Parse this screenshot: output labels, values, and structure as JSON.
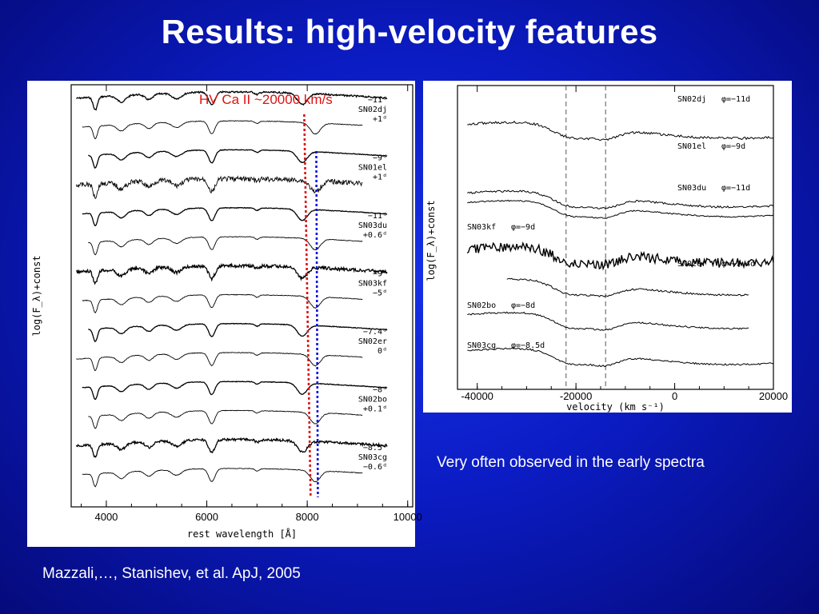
{
  "slide": {
    "title": "Results: high-velocity features",
    "note": "Very often observed in the early spectra",
    "citation": "Mazzali,…, Stanishev, et al. ApJ, 2005"
  },
  "colors": {
    "background": "#0b1cc4",
    "hv_line": "#e01010",
    "rest_line": "#1010e0"
  },
  "chart_data": [
    {
      "type": "line",
      "panel": "left",
      "xlabel": "rest wavelength [Å]",
      "ylabel": "log(F_λ)+const",
      "x_ticks": [
        4000,
        6000,
        8000,
        10000
      ],
      "xlim": [
        3300,
        10100
      ],
      "annotation": "HV  Ca II ~20000 km/s",
      "hv_line_wavelength": 7940,
      "rest_line_wavelength": 8180,
      "spectra": [
        {
          "name": "SN02dj",
          "epochs": [
            "−11ᵈ",
            "+1ᵈ"
          ]
        },
        {
          "name": "SN01el",
          "epochs": [
            "−9ᵈ",
            "+1ᵈ"
          ]
        },
        {
          "name": "SN03du",
          "epochs": [
            "−11ᵈ",
            "+0.6ᵈ"
          ]
        },
        {
          "name": "SN03kf",
          "epochs": [
            "−9ᵈ",
            "−5ᵈ"
          ]
        },
        {
          "name": "SN02er",
          "epochs": [
            "−7.4ᵈ",
            "0ᵈ"
          ]
        },
        {
          "name": "SN02bo",
          "epochs": [
            "−8ᵈ",
            "+0.1ᵈ"
          ]
        },
        {
          "name": "SN03cg",
          "epochs": [
            "−8.5ᵈ",
            "−0.6ᵈ"
          ]
        }
      ]
    },
    {
      "type": "line",
      "panel": "right",
      "xlabel": "velocity (km s⁻¹)",
      "ylabel": "log(F_λ)+const",
      "x_ticks": [
        -40000,
        -20000,
        0,
        20000
      ],
      "xlim": [
        -44000,
        20000
      ],
      "dashed_lines": [
        -22000,
        -14000
      ],
      "spectra": [
        {
          "name": "SN02dj",
          "phase": "φ=−11d"
        },
        {
          "name": "SN01el",
          "phase": "φ=−9d"
        },
        {
          "name": "SN03du",
          "phase": "φ=−11d"
        },
        {
          "name": "SN03kf",
          "phase": "φ=−9d"
        },
        {
          "name": "SN02er",
          "phase": "φ=−7.4d"
        },
        {
          "name": "SN02bo",
          "phase": "φ=−8d"
        },
        {
          "name": "SN03cg",
          "phase": "φ=−8.5d"
        }
      ]
    }
  ]
}
